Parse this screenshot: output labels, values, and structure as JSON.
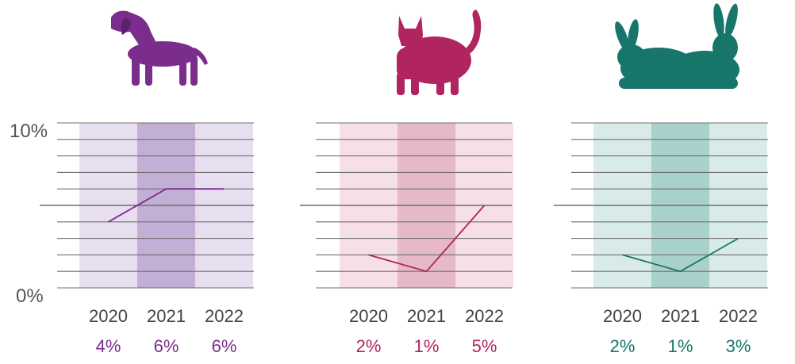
{
  "axis": {
    "top_label": "10%",
    "bottom_label": "0%"
  },
  "chart_data": [
    {
      "type": "line",
      "animal": "dog",
      "icon": "dog-icon",
      "color": "#7b2d8e",
      "band_light": "#e7dff0",
      "band_dark": "#c3aed6",
      "categories": [
        "2020",
        "2021",
        "2022"
      ],
      "values": [
        4,
        6,
        6
      ],
      "value_labels": [
        "4%",
        "6%",
        "6%"
      ],
      "ylim": [
        0,
        10
      ],
      "grid": true
    },
    {
      "type": "line",
      "animal": "cat",
      "icon": "cat-icon",
      "color": "#b0245f",
      "band_light": "#f6dfe6",
      "band_dark": "#e6b9c9",
      "categories": [
        "2020",
        "2021",
        "2022"
      ],
      "values": [
        2,
        1,
        5
      ],
      "value_labels": [
        "2%",
        "1%",
        "5%"
      ],
      "ylim": [
        0,
        10
      ],
      "grid": true
    },
    {
      "type": "line",
      "animal": "rabbit",
      "icon": "rabbits-icon",
      "color": "#17756a",
      "band_light": "#d9ebe8",
      "band_dark": "#a9d1cc",
      "categories": [
        "2020",
        "2021",
        "2022"
      ],
      "values": [
        2,
        1,
        3
      ],
      "value_labels": [
        "2%",
        "1%",
        "3%"
      ],
      "ylim": [
        0,
        10
      ],
      "grid": true
    }
  ]
}
